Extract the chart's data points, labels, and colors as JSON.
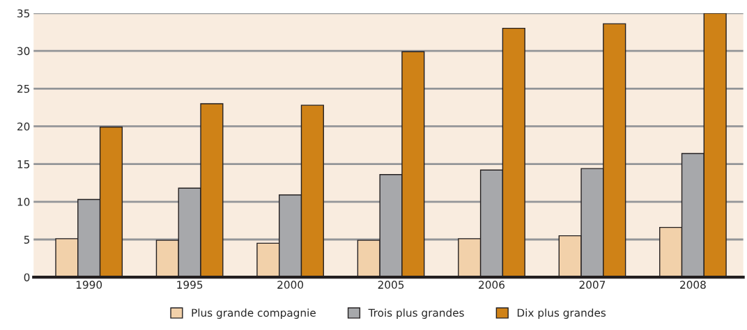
{
  "chart_data": {
    "type": "bar",
    "categories": [
      "1990",
      "1995",
      "2000",
      "2005",
      "2006",
      "2007",
      "2008"
    ],
    "series": [
      {
        "name": "Plus grande compagnie",
        "color": "#f2d1aa",
        "values": [
          5.1,
          4.9,
          4.5,
          4.9,
          5.1,
          5.5,
          6.6
        ]
      },
      {
        "name": "Trois plus grandes",
        "color": "#a7a8ab",
        "values": [
          10.3,
          11.8,
          10.9,
          13.6,
          14.2,
          14.4,
          16.4
        ]
      },
      {
        "name": "Dix plus grandes",
        "color": "#cf8217",
        "values": [
          19.9,
          23.0,
          22.8,
          29.9,
          33.0,
          33.6,
          35.0
        ]
      }
    ],
    "ylim": [
      0,
      35
    ],
    "yticks": [
      0,
      5,
      10,
      15,
      20,
      25,
      30,
      35
    ],
    "grid": "y",
    "legend": "bottom"
  }
}
